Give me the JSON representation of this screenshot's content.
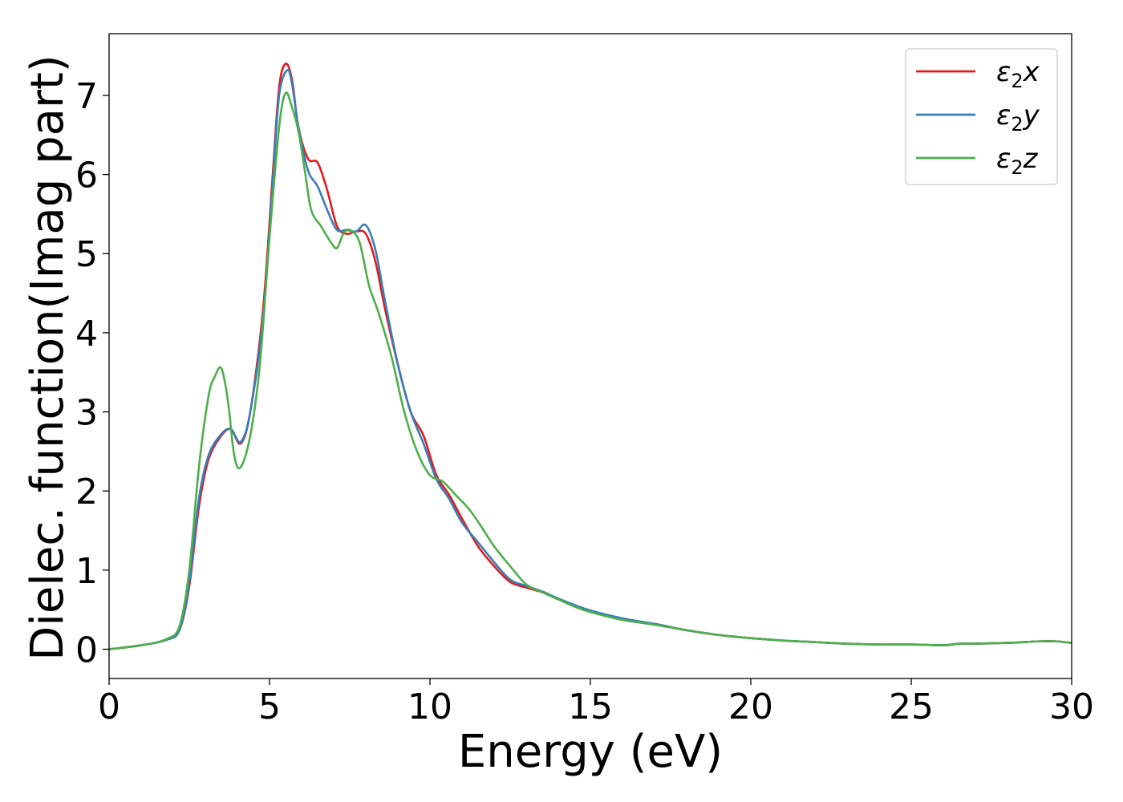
{
  "chart_data": {
    "type": "line",
    "title": "",
    "xlabel": "Energy (eV)",
    "ylabel": "Dielec. function(Imag part)",
    "xlim": [
      0,
      30
    ],
    "ylim": [
      -0.37,
      7.78
    ],
    "xticks": [
      0,
      5,
      10,
      15,
      20,
      25,
      30
    ],
    "yticks": [
      0,
      1,
      2,
      3,
      4,
      5,
      6,
      7
    ],
    "xtick_labels": [
      "0",
      "5",
      "10",
      "15",
      "20",
      "25",
      "30"
    ],
    "ytick_labels": [
      "0",
      "1",
      "2",
      "3",
      "4",
      "5",
      "6",
      "7"
    ],
    "grid": false,
    "legend_position": "top-right",
    "series": [
      {
        "name": "ε2x",
        "legend": {
          "symbol": "ε",
          "sub": "2",
          "suffix": "x"
        },
        "color": "#e41a1c",
        "x": [
          0,
          1,
          1.8,
          2.2,
          2.5,
          2.8,
          3.1,
          3.5,
          3.8,
          4.1,
          4.4,
          4.8,
          5.1,
          5.3,
          5.5,
          5.7,
          5.9,
          6.2,
          6.5,
          6.8,
          7.1,
          7.4,
          7.7,
          8.0,
          8.3,
          8.6,
          9.0,
          9.4,
          9.8,
          10.2,
          10.6,
          11.0,
          11.5,
          12.0,
          12.5,
          13.0,
          13.5,
          14.0,
          14.5,
          15.0,
          16.0,
          17.0,
          18.0,
          19.0,
          20.0,
          21.0,
          22.0,
          23.0,
          24.0,
          25.0,
          26.0,
          26.5,
          27.0,
          28.0,
          29.0,
          29.5,
          30.0
        ],
        "y": [
          0.0,
          0.05,
          0.12,
          0.25,
          0.8,
          1.8,
          2.4,
          2.7,
          2.78,
          2.6,
          3.0,
          4.3,
          6.0,
          7.1,
          7.4,
          7.2,
          6.6,
          6.2,
          6.15,
          5.8,
          5.35,
          5.25,
          5.28,
          5.25,
          4.9,
          4.3,
          3.6,
          3.0,
          2.7,
          2.2,
          1.95,
          1.65,
          1.3,
          1.05,
          0.85,
          0.78,
          0.72,
          0.63,
          0.55,
          0.48,
          0.38,
          0.32,
          0.24,
          0.18,
          0.14,
          0.11,
          0.09,
          0.07,
          0.06,
          0.06,
          0.05,
          0.07,
          0.07,
          0.08,
          0.1,
          0.1,
          0.08
        ]
      },
      {
        "name": "ε2y",
        "legend": {
          "symbol": "ε",
          "sub": "2",
          "suffix": "y"
        },
        "color": "#377eb8",
        "x": [
          0,
          1,
          1.8,
          2.2,
          2.5,
          2.8,
          3.1,
          3.5,
          3.8,
          4.1,
          4.4,
          4.8,
          5.1,
          5.3,
          5.55,
          5.7,
          5.9,
          6.2,
          6.5,
          6.8,
          7.1,
          7.4,
          7.7,
          8.0,
          8.3,
          8.6,
          9.0,
          9.4,
          9.8,
          10.2,
          10.6,
          11.0,
          11.5,
          12.0,
          12.5,
          13.0,
          13.5,
          14.0,
          14.5,
          15.0,
          16.0,
          17.0,
          18.0,
          19.0,
          20.0,
          21.0,
          22.0,
          23.0,
          24.0,
          25.0,
          26.0,
          26.5,
          27.0,
          28.0,
          29.0,
          29.5,
          30.0
        ],
        "y": [
          0.0,
          0.05,
          0.12,
          0.25,
          0.85,
          1.9,
          2.45,
          2.72,
          2.78,
          2.62,
          3.0,
          4.2,
          5.9,
          7.0,
          7.32,
          7.15,
          6.6,
          6.05,
          5.85,
          5.55,
          5.3,
          5.3,
          5.28,
          5.36,
          5.05,
          4.4,
          3.6,
          3.0,
          2.6,
          2.15,
          1.9,
          1.6,
          1.35,
          1.1,
          0.88,
          0.8,
          0.73,
          0.64,
          0.56,
          0.49,
          0.39,
          0.32,
          0.24,
          0.18,
          0.14,
          0.11,
          0.09,
          0.07,
          0.06,
          0.06,
          0.05,
          0.07,
          0.07,
          0.08,
          0.1,
          0.1,
          0.08
        ]
      },
      {
        "name": "ε2z",
        "legend": {
          "symbol": "ε",
          "sub": "2",
          "suffix": "z"
        },
        "color": "#4daf4a",
        "x": [
          0,
          1,
          1.8,
          2.2,
          2.5,
          2.8,
          3.1,
          3.3,
          3.5,
          3.7,
          3.9,
          4.1,
          4.4,
          4.7,
          5.0,
          5.3,
          5.5,
          5.7,
          5.9,
          6.1,
          6.3,
          6.6,
          6.9,
          7.1,
          7.3,
          7.5,
          7.8,
          8.1,
          8.4,
          8.8,
          9.2,
          9.6,
          10.0,
          10.4,
          10.8,
          11.2,
          11.6,
          12.0,
          12.5,
          13.0,
          13.5,
          14.0,
          14.5,
          15.0,
          16.0,
          17.0,
          18.0,
          19.0,
          20.0,
          21.0,
          22.0,
          23.0,
          24.0,
          25.0,
          26.0,
          26.5,
          27.0,
          28.0,
          29.0,
          29.5,
          30.0
        ],
        "y": [
          0.0,
          0.05,
          0.13,
          0.3,
          1.0,
          2.3,
          3.2,
          3.45,
          3.55,
          3.15,
          2.45,
          2.3,
          2.7,
          3.6,
          5.2,
          6.6,
          7.03,
          6.85,
          6.55,
          6.05,
          5.55,
          5.35,
          5.15,
          5.07,
          5.25,
          5.3,
          5.15,
          4.6,
          4.25,
          3.7,
          3.0,
          2.5,
          2.2,
          2.12,
          1.95,
          1.78,
          1.55,
          1.3,
          1.05,
          0.82,
          0.72,
          0.63,
          0.54,
          0.47,
          0.37,
          0.31,
          0.24,
          0.18,
          0.14,
          0.11,
          0.09,
          0.07,
          0.06,
          0.06,
          0.05,
          0.07,
          0.07,
          0.08,
          0.1,
          0.1,
          0.08
        ]
      }
    ]
  }
}
